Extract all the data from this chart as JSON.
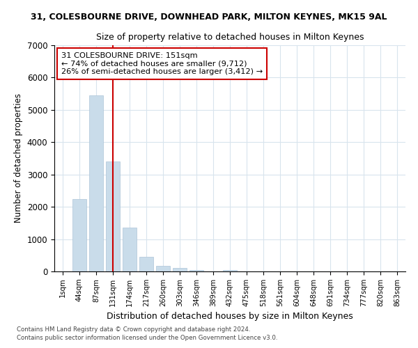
{
  "title_line1": "31, COLESBOURNE DRIVE, DOWNHEAD PARK, MILTON KEYNES, MK15 9AL",
  "title_line2": "Size of property relative to detached houses in Milton Keynes",
  "xlabel": "Distribution of detached houses by size in Milton Keynes",
  "ylabel": "Number of detached properties",
  "annotation_line1": "31 COLESBOURNE DRIVE: 151sqm",
  "annotation_line2": "← 74% of detached houses are smaller (9,712)",
  "annotation_line3": "26% of semi-detached houses are larger (3,412) →",
  "footer_line1": "Contains HM Land Registry data © Crown copyright and database right 2024.",
  "footer_line2": "Contains public sector information licensed under the Open Government Licence v3.0.",
  "bar_color": "#c9dcea",
  "bar_edge_color": "#adc4d8",
  "vline_color": "#cc0000",
  "annotation_box_edgecolor": "#cc0000",
  "background_color": "#ffffff",
  "grid_color": "#d8e4ed",
  "categories": [
    "1sqm",
    "44sqm",
    "87sqm",
    "131sqm",
    "174sqm",
    "217sqm",
    "260sqm",
    "303sqm",
    "346sqm",
    "389sqm",
    "432sqm",
    "475sqm",
    "518sqm",
    "561sqm",
    "604sqm",
    "648sqm",
    "691sqm",
    "734sqm",
    "777sqm",
    "820sqm",
    "863sqm"
  ],
  "values": [
    0,
    2250,
    5450,
    3400,
    1350,
    450,
    175,
    100,
    50,
    0,
    50,
    0,
    0,
    0,
    0,
    0,
    0,
    0,
    0,
    0,
    0
  ],
  "vline_x": 3.0,
  "ylim": [
    0,
    7000
  ],
  "yticks": [
    0,
    1000,
    2000,
    3000,
    4000,
    5000,
    6000,
    7000
  ]
}
